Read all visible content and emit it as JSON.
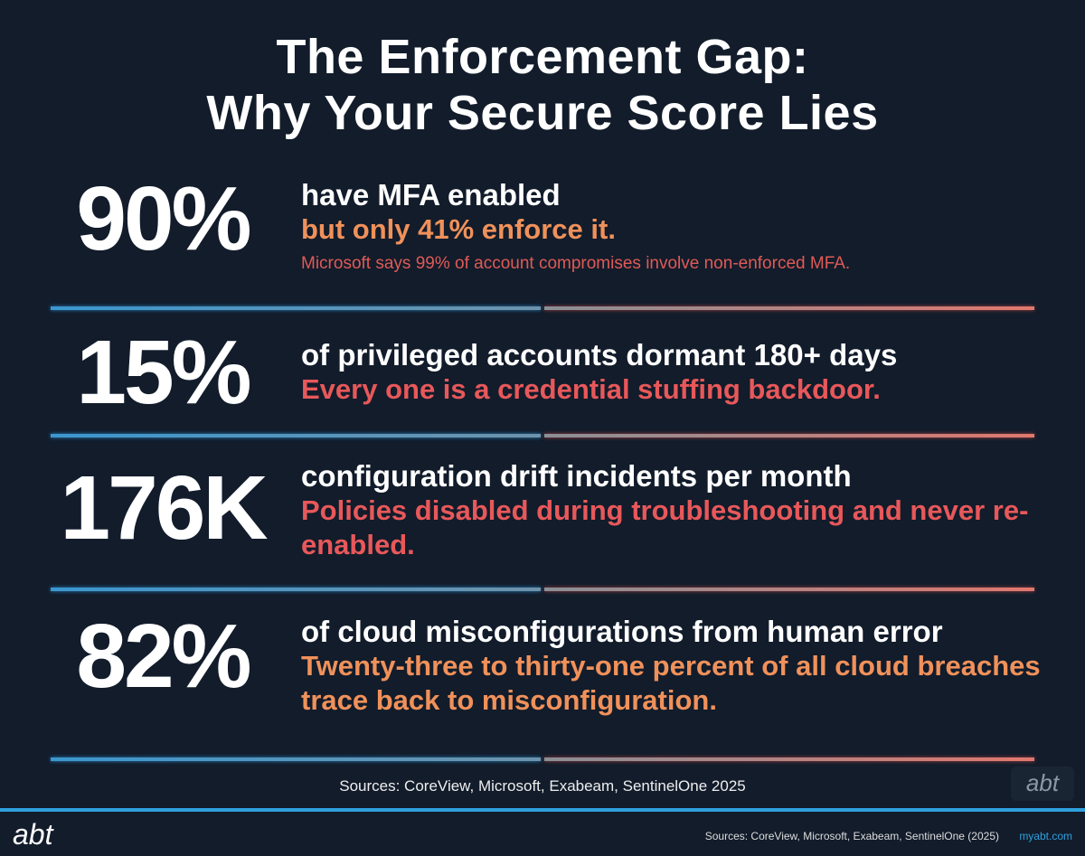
{
  "title": {
    "line1": "The Enforcement Gap:",
    "line2": "Why Your Secure Score Lies"
  },
  "stats": [
    {
      "value": "90%",
      "headline": "have MFA enabled",
      "detail": "but only 41% enforce it.",
      "note": "Microsoft says 99% of account compromises involve non-enforced MFA."
    },
    {
      "value": "15%",
      "headline": "of privileged accounts dormant 180+ days",
      "detail": "Every one is a credential stuffing backdoor."
    },
    {
      "value": "176K",
      "headline": "configuration drift incidents per month",
      "detail": "Policies disabled during troubleshooting and never re-enabled."
    },
    {
      "value": "82%",
      "headline": "of cloud misconfigurations from human error",
      "detail": "Twenty-three to thirty-one percent of all cloud breaches trace back to misconfiguration."
    }
  ],
  "sources": "Sources: CoreView, Microsoft, Exabeam, SentinelOne 2025",
  "logo": "abt",
  "footer": {
    "logo": "abt",
    "sources": "Sources: CoreView, Microsoft, Exabeam, SentinelOne (2025)",
    "url": "myabt.com"
  },
  "colors": {
    "background": "#121c2b",
    "orange": "#f0915a",
    "red": "#e8585a",
    "blue": "#2fa0de"
  }
}
